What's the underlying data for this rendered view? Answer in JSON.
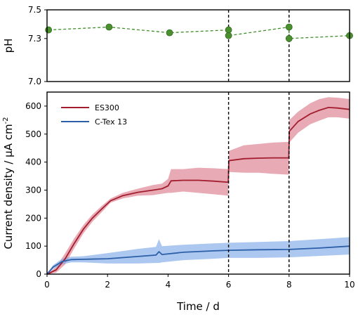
{
  "chart_data": [
    {
      "type": "scatter",
      "ylabel": "pH",
      "xlim": [
        0,
        10
      ],
      "ylim": [
        7.0,
        7.5
      ],
      "y_ticks": [
        "7.0",
        "7.3",
        "7.5"
      ],
      "grid": false,
      "series": [
        {
          "line_style": "dashed",
          "color": "#3f8f2a",
          "marker_color": "#4c8f2e",
          "x": [
            0.05,
            2.05,
            4.05,
            6.0,
            6.0,
            8.0,
            8.0,
            10.0
          ],
          "y": [
            7.36,
            7.38,
            7.34,
            7.36,
            7.32,
            7.38,
            7.3,
            7.32
          ]
        }
      ],
      "vlines": [
        6,
        8
      ]
    },
    {
      "type": "area",
      "xlabel": "Time / d",
      "ylabel_main": "Current density / μA cm",
      "ylabel_sup": "-2",
      "xlim": [
        0,
        10
      ],
      "ylim": [
        0,
        650
      ],
      "x_ticks": [
        0,
        2,
        4,
        6,
        8,
        10
      ],
      "y_ticks": [
        0,
        100,
        200,
        300,
        400,
        500,
        600
      ],
      "grid": false,
      "legend_position": "top-left",
      "vlines": [
        6,
        8
      ],
      "series": [
        {
          "name": "ES300",
          "line_color": "#a31d2e",
          "band_color": "#dc7e8d",
          "x": [
            0,
            0.3,
            0.6,
            0.9,
            1.2,
            1.5,
            1.8,
            2.1,
            2.5,
            3.0,
            3.5,
            3.8,
            4.0,
            4.1,
            4.5,
            5.0,
            5.5,
            5.99,
            6.01,
            6.5,
            7.0,
            7.5,
            7.99,
            8.01,
            8.3,
            8.7,
            9.0,
            9.3,
            9.6,
            10.0
          ],
          "mean": [
            0,
            15,
            55,
            110,
            160,
            200,
            232,
            262,
            280,
            292,
            300,
            305,
            315,
            333,
            335,
            335,
            332,
            328,
            405,
            412,
            414,
            415,
            415,
            510,
            545,
            572,
            585,
            595,
            593,
            588
          ],
          "upper": [
            0,
            25,
            75,
            128,
            175,
            213,
            243,
            270,
            290,
            305,
            318,
            323,
            340,
            375,
            375,
            380,
            378,
            375,
            440,
            460,
            465,
            470,
            472,
            550,
            580,
            610,
            625,
            632,
            630,
            625
          ],
          "lower": [
            0,
            5,
            35,
            92,
            145,
            187,
            220,
            255,
            270,
            280,
            282,
            287,
            290,
            290,
            295,
            290,
            285,
            280,
            365,
            362,
            362,
            358,
            355,
            470,
            505,
            535,
            548,
            560,
            560,
            555
          ]
        },
        {
          "name": "C-Tex 13",
          "line_color": "#2c5fa8",
          "band_color": "#7fa9e8",
          "x": [
            0,
            0.2,
            0.5,
            0.8,
            1.2,
            2.0,
            3.0,
            3.6,
            3.7,
            3.8,
            4.5,
            5.5,
            6.0,
            7.0,
            8.0,
            9.0,
            10.0
          ],
          "mean": [
            0,
            25,
            45,
            52,
            53,
            55,
            63,
            68,
            80,
            70,
            78,
            83,
            85,
            87,
            88,
            93,
            100
          ],
          "upper": [
            0,
            32,
            55,
            62,
            64,
            75,
            90,
            97,
            125,
            100,
            105,
            110,
            112,
            115,
            118,
            125,
            132
          ],
          "lower": [
            0,
            18,
            35,
            42,
            42,
            38,
            38,
            40,
            40,
            42,
            50,
            55,
            58,
            58,
            60,
            65,
            70
          ]
        }
      ]
    }
  ]
}
